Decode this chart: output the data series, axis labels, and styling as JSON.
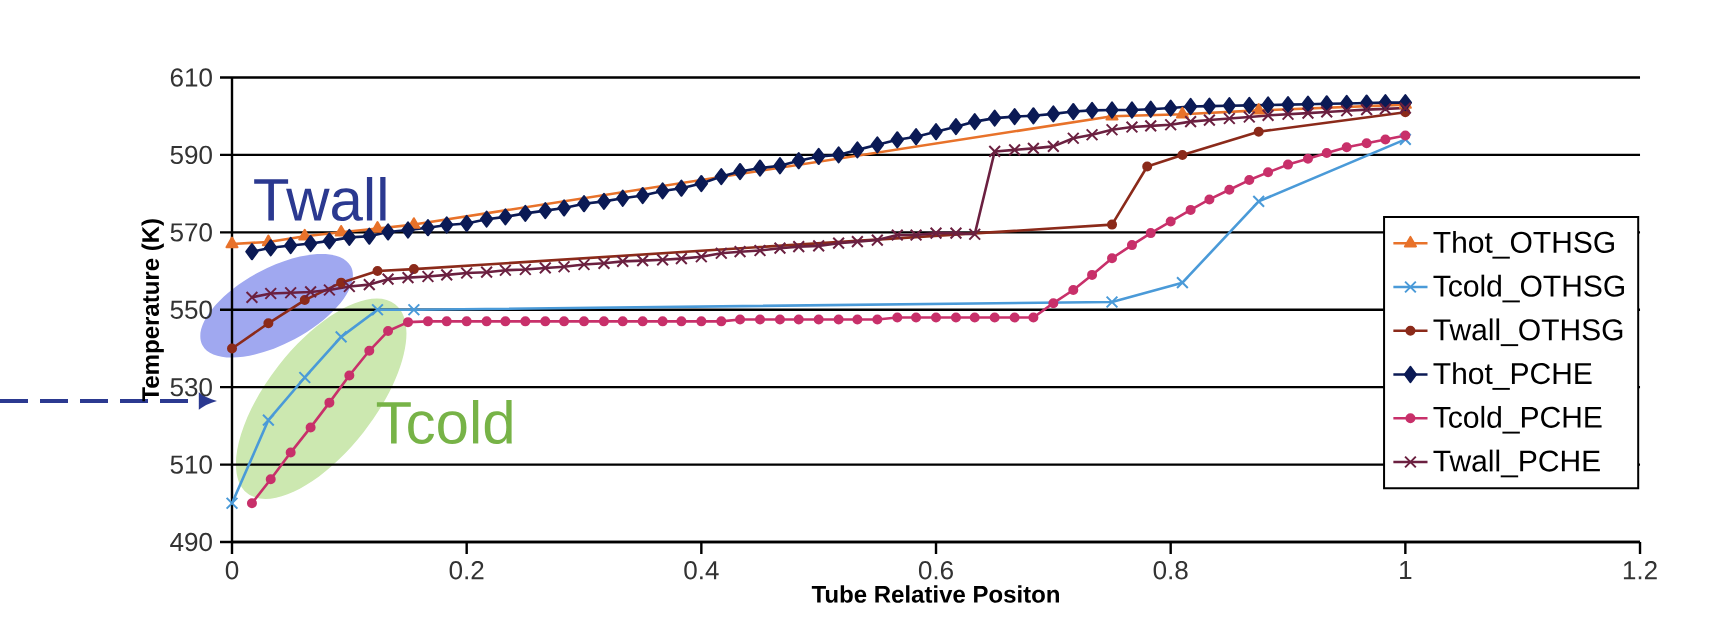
{
  "chart_data": {
    "type": "line",
    "xlabel": "Tube Relative Positon",
    "ylabel": "Temperature (K)",
    "xlim": [
      0,
      1.2
    ],
    "ylim": [
      490,
      610
    ],
    "xticks": [
      0,
      0.2,
      0.4,
      0.6,
      0.8,
      1,
      1.2
    ],
    "yticks": [
      490,
      510,
      530,
      550,
      570,
      590,
      610
    ],
    "grid": "y",
    "legend": "right",
    "annotations": [
      "Twall",
      "Tcold"
    ],
    "x": [
      0.017,
      0.033,
      0.05,
      0.067,
      0.083,
      0.1,
      0.117,
      0.133,
      0.15,
      0.167,
      0.183,
      0.2,
      0.217,
      0.233,
      0.25,
      0.267,
      0.283,
      0.3,
      0.317,
      0.333,
      0.35,
      0.367,
      0.383,
      0.4,
      0.417,
      0.433,
      0.45,
      0.467,
      0.483,
      0.5,
      0.517,
      0.533,
      0.55,
      0.567,
      0.583,
      0.6,
      0.617,
      0.633,
      0.65,
      0.667,
      0.683,
      0.7,
      0.717,
      0.733,
      0.75,
      0.767,
      0.783,
      0.8,
      0.817,
      0.833,
      0.85,
      0.867,
      0.883,
      0.9,
      0.917,
      0.933,
      0.95,
      0.967,
      0.983,
      1
    ],
    "series": [
      {
        "name": "Thot_OTHSG",
        "color": "#e8722a",
        "marker": "triangle",
        "x": [
          0,
          0.031,
          0.062,
          0.093,
          0.124,
          0.155,
          0.75,
          0.81,
          0.875,
          1
        ],
        "values": [
          567,
          567.5,
          569,
          570,
          571,
          572,
          600,
          600.5,
          601.5,
          603
        ]
      },
      {
        "name": "Tcold_OTHSG",
        "color": "#4a9ad8",
        "marker": "cross",
        "x": [
          0,
          0.031,
          0.062,
          0.093,
          0.124,
          0.155,
          0.75,
          0.81,
          0.875,
          1
        ],
        "values": [
          500,
          521.5,
          532.5,
          543,
          550,
          550,
          552,
          557,
          578,
          594
        ]
      },
      {
        "name": "Twall_OTHSG",
        "color": "#8b2a1a",
        "marker": "circle",
        "x": [
          0,
          0.031,
          0.062,
          0.093,
          0.124,
          0.155,
          0.75,
          0.78,
          0.81,
          0.875,
          1
        ],
        "values": [
          540,
          546.5,
          552.5,
          557,
          560,
          560.5,
          572,
          587,
          590,
          596,
          601
        ]
      },
      {
        "name": "Thot_PCHE",
        "color": "#0b1a55",
        "marker": "diamond",
        "values": [
          565.0,
          566.0,
          566.6,
          567.1,
          567.8,
          568.7,
          569.0,
          570.1,
          570.6,
          571.2,
          571.9,
          572.3,
          573.4,
          574.0,
          574.9,
          575.6,
          576.3,
          577.4,
          578.0,
          578.8,
          579.5,
          580.7,
          581.4,
          582.6,
          584.4,
          585.7,
          586.6,
          587.2,
          588.5,
          589.6,
          590.0,
          591.3,
          592.6,
          593.9,
          594.7,
          596.0,
          597.3,
          598.6,
          599.5,
          599.9,
          600.1,
          600.6,
          601.2,
          601.5,
          601.6,
          601.6,
          601.8,
          602.1,
          602.5,
          602.6,
          602.7,
          602.8,
          602.9,
          603.0,
          603.1,
          603.2,
          603.3,
          603.4,
          603.5,
          603.5
        ]
      },
      {
        "name": "Tcold_PCHE",
        "color": "#c8306a",
        "marker": "circle",
        "values": [
          500,
          506.2,
          513.1,
          519.6,
          526,
          533,
          539.4,
          544.5,
          546.8,
          547,
          547,
          547,
          547,
          547,
          547,
          547,
          547,
          547,
          547,
          547,
          547,
          547,
          547,
          547,
          547,
          547.5,
          547.5,
          547.5,
          547.5,
          547.5,
          547.5,
          547.5,
          547.5,
          548,
          548,
          548,
          548,
          548,
          548,
          548,
          548,
          551.7,
          555.1,
          559,
          563.3,
          566.7,
          569.8,
          572.8,
          575.8,
          578.5,
          581,
          583.5,
          585.5,
          587.5,
          589,
          590.5,
          592,
          593,
          594,
          595
        ]
      },
      {
        "name": "Twall_PCHE",
        "color": "#6b2040",
        "marker": "cross",
        "values": [
          553.2,
          554.2,
          554.4,
          554.6,
          555.1,
          556.0,
          556.5,
          557.9,
          558.3,
          558.6,
          559.0,
          559.5,
          559.7,
          560.2,
          560.4,
          560.8,
          561.1,
          561.7,
          562.0,
          562.5,
          562.7,
          562.9,
          563.2,
          563.7,
          564.6,
          565.0,
          565.3,
          565.9,
          566.3,
          566.5,
          567.2,
          567.6,
          568.0,
          569.3,
          569.3,
          569.8,
          569.8,
          569.5,
          590.9,
          591.3,
          591.7,
          592.2,
          594.3,
          595.2,
          596.5,
          597.2,
          597.5,
          597.8,
          598.6,
          599.0,
          599.4,
          599.8,
          600.2,
          600.5,
          600.8,
          601.1,
          601.4,
          601.7,
          601.9,
          602.1
        ]
      }
    ]
  }
}
